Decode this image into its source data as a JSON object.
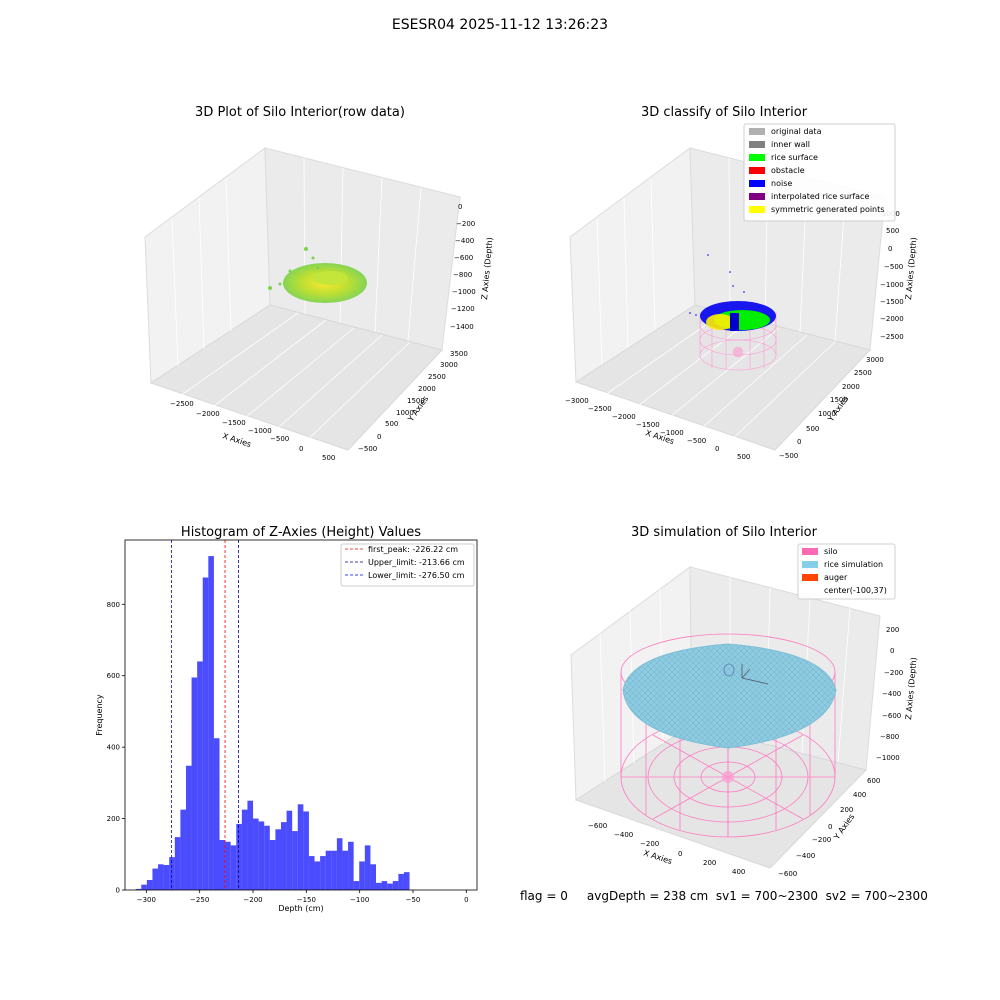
{
  "figure": {
    "suptitle": "ESESR04 2025-11-12 13:26:23",
    "status_line": "flag = 0     avgDepth = 238 cm  sv1 = 700~2300  sv2 = 700~2300"
  },
  "chart_data": [
    {
      "type": "scatter",
      "projection": "3d",
      "title": "3D Plot of Silo Interior(row data)",
      "xlabel": "X Axies",
      "ylabel": "Y Axies",
      "zlabel": "Z Axies (Depth)",
      "x_ticks": [
        "−2500",
        "−2000",
        "−1500",
        "−1000",
        "−500",
        "0",
        "500"
      ],
      "y_ticks": [
        "−500",
        "0",
        "500",
        "1000",
        "1500",
        "2000",
        "2500",
        "3000",
        "3500"
      ],
      "z_ticks": [
        "0",
        "−200",
        "−400",
        "−600",
        "−800",
        "−1000",
        "−1200",
        "−1400"
      ],
      "colormap": [
        "#7fd34e",
        "#b5de2b",
        "#fde725"
      ],
      "grid": true
    },
    {
      "type": "scatter",
      "projection": "3d",
      "title": "3D classify of Silo Interior",
      "xlabel": "X Axies",
      "ylabel": "Y Axies",
      "zlabel": "Z Axies (Depth)",
      "x_ticks": [
        "−3000",
        "−2500",
        "−2000",
        "−1500",
        "−1000",
        "−500",
        "0",
        "500"
      ],
      "y_ticks": [
        "−500",
        "0",
        "500",
        "1000",
        "1500",
        "2000",
        "2500",
        "3000"
      ],
      "z_ticks": [
        "1000",
        "500",
        "0",
        "−500",
        "−1000",
        "−1500",
        "−2000",
        "−2500"
      ],
      "legend_position": "top-right",
      "legend": [
        {
          "label": "original data",
          "color": "#b0b0b0"
        },
        {
          "label": "inner wall",
          "color": "#808080"
        },
        {
          "label": "rice surface",
          "color": "#00ff00"
        },
        {
          "label": "obstacle",
          "color": "#ff0000"
        },
        {
          "label": "noise",
          "color": "#0000ff"
        },
        {
          "label": "interpolated rice surface",
          "color": "#800080"
        },
        {
          "label": "symmetric generated points",
          "color": "#ffff00"
        }
      ],
      "grid": true
    },
    {
      "type": "bar",
      "title": "Histogram of Z-Axies (Height) Values",
      "xlabel": "Depth (cm)",
      "ylabel": "Frequency",
      "xlim": [
        -320,
        10
      ],
      "ylim": [
        0,
        980
      ],
      "x_ticks": [
        -300,
        -250,
        -200,
        -150,
        -100,
        -50,
        0
      ],
      "y_ticks": [
        0,
        200,
        400,
        600,
        800
      ],
      "bin_edges_start": -310,
      "bin_width": 5.24,
      "values": [
        3,
        15,
        28,
        60,
        72,
        70,
        92,
        148,
        225,
        348,
        595,
        640,
        875,
        935,
        425,
        140,
        135,
        125,
        185,
        225,
        250,
        200,
        192,
        180,
        140,
        170,
        190,
        222,
        165,
        240,
        220,
        95,
        80,
        95,
        110,
        110,
        145,
        110,
        135,
        25,
        80,
        125,
        72,
        20,
        25,
        18,
        25,
        45,
        50
      ],
      "bar_color": "#0000ff",
      "vlines": [
        {
          "label": "first_peak: -226.22 cm",
          "x": -226.22,
          "color": "#ff0000"
        },
        {
          "label": "Upper_limit: -213.66 cm",
          "x": -213.66,
          "color": "#00008b"
        },
        {
          "label": "Lower_limit: -276.50 cm",
          "x": -276.5,
          "color": "#0000ff"
        }
      ],
      "legend_position": "top-right",
      "grid": false
    },
    {
      "type": "surface",
      "projection": "3d",
      "title": "3D simulation of Silo Interior",
      "xlabel": "X Axies",
      "ylabel": "Y Axies",
      "zlabel": "Z Axies (Depth)",
      "x_ticks": [
        "−600",
        "−400",
        "−200",
        "0",
        "200",
        "400"
      ],
      "y_ticks": [
        "−600",
        "−400",
        "−200",
        "0",
        "200",
        "400",
        "600"
      ],
      "z_ticks": [
        "200",
        "0",
        "−200",
        "−400",
        "−600",
        "−800",
        "−1000"
      ],
      "legend_position": "top-right",
      "legend": [
        {
          "label": "silo",
          "color": "#ff69b4"
        },
        {
          "label": "rice simulation",
          "color": "#87ceeb"
        },
        {
          "label": "auger",
          "color": "#ff4500"
        },
        {
          "label": "center(-100,37)",
          "color": ""
        }
      ],
      "grid": true
    }
  ]
}
